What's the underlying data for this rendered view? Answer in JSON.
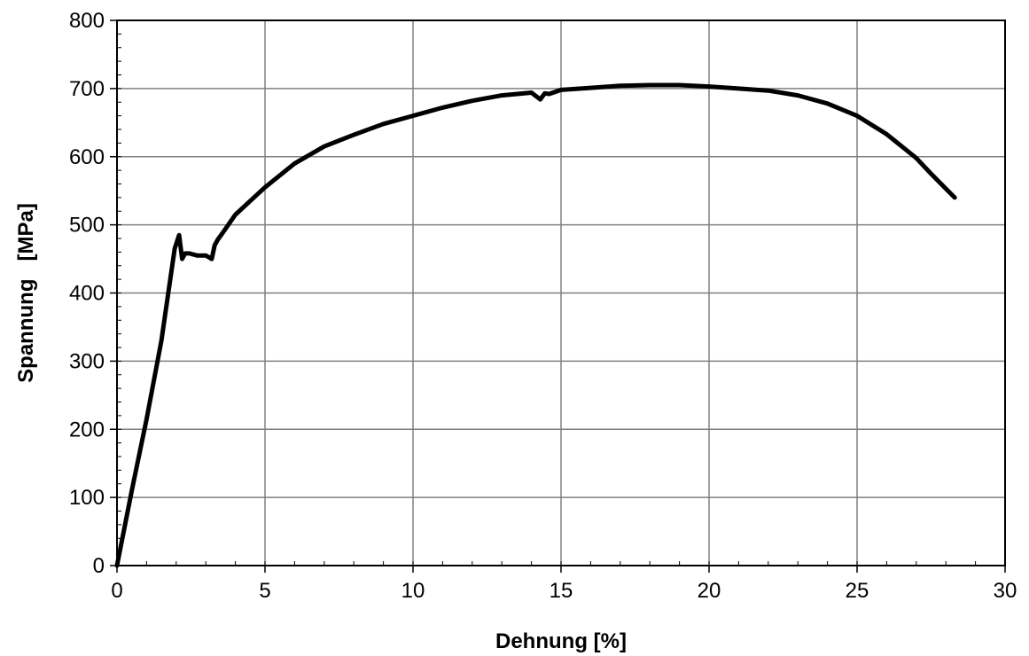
{
  "chart_data": {
    "type": "line",
    "title": "",
    "xlabel": "Dehnung [%]",
    "ylabel": "Spannung   [MPa]",
    "xlim": [
      0,
      30
    ],
    "ylim": [
      0,
      800
    ],
    "xticks": [
      0,
      5,
      10,
      15,
      20,
      25,
      30
    ],
    "yticks": [
      0,
      100,
      200,
      300,
      400,
      500,
      600,
      700,
      800
    ],
    "xtick_labels": [
      "0",
      "5",
      "10",
      "15",
      "20",
      "25",
      "30"
    ],
    "ytick_labels": [
      "0",
      "100",
      "200",
      "300",
      "400",
      "500",
      "600",
      "700",
      "800"
    ],
    "grid": true,
    "legend": "none",
    "line_color": "#000000",
    "grid_color": "#808080",
    "series": [
      {
        "x": [
          0,
          0.5,
          1.0,
          1.5,
          1.95,
          2.1,
          2.2,
          2.3,
          2.45,
          2.7,
          3.0,
          3.2,
          3.3,
          3.4,
          3.6,
          4.0,
          4.5,
          5.0,
          6.0,
          7.0,
          8.0,
          9.0,
          10.0,
          11.0,
          12.0,
          13.0,
          14.0,
          14.3,
          14.45,
          14.6,
          15.0,
          16.0,
          17.0,
          18.0,
          19.0,
          20.0,
          21.0,
          22.0,
          23.0,
          24.0,
          25.0,
          26.0,
          27.0,
          27.5,
          28.0,
          28.3
        ],
        "y": [
          0,
          110,
          215,
          330,
          465,
          485,
          450,
          458,
          458,
          455,
          455,
          450,
          470,
          478,
          490,
          515,
          535,
          555,
          590,
          615,
          632,
          648,
          660,
          672,
          682,
          690,
          694,
          684,
          693,
          692,
          698,
          701,
          704,
          705,
          705,
          703,
          700,
          697,
          690,
          678,
          660,
          633,
          598,
          575,
          553,
          540
        ]
      }
    ]
  }
}
